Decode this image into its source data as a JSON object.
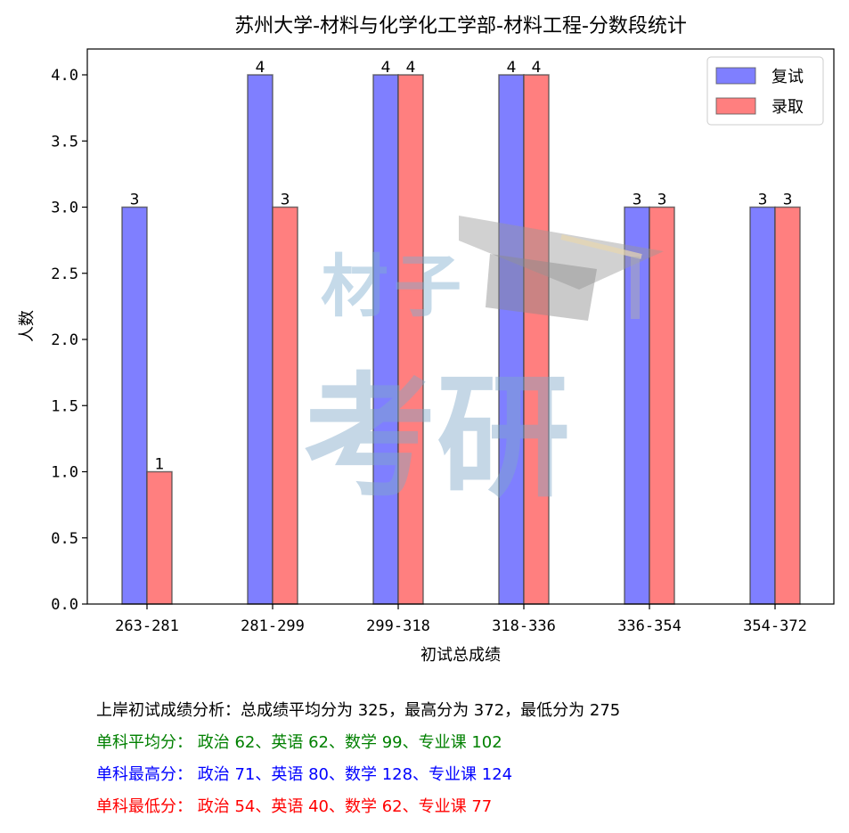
{
  "chart_data": {
    "type": "bar",
    "title": "苏州大学-材料与化学化工学部-材料工程-分数段统计",
    "xlabel": "初试总成绩",
    "ylabel": "人数",
    "categories": [
      "263-281",
      "281-299",
      "299-318",
      "318-336",
      "336-354",
      "354-372"
    ],
    "series": [
      {
        "name": "复试",
        "values": [
          3,
          4,
          4,
          4,
          3,
          3
        ],
        "color": "#7f7fff"
      },
      {
        "name": "录取",
        "values": [
          1,
          3,
          4,
          4,
          3,
          3
        ],
        "color": "#ff7f7f"
      }
    ],
    "ylim": [
      0,
      4.2
    ],
    "yticks": [
      "0.0",
      "0.5",
      "1.0",
      "1.5",
      "2.0",
      "2.5",
      "3.0",
      "3.5",
      "4.0"
    ],
    "ytick_values": [
      0,
      0.5,
      1.0,
      1.5,
      2.0,
      2.5,
      3.0,
      3.5,
      4.0
    ],
    "grid": false,
    "legend": "top-right"
  },
  "watermark": {
    "line1": "材子",
    "line2": "考研",
    "icon": "graduation-cap-icon"
  },
  "notes": [
    {
      "text": "上岸初试成绩分析：总成绩平均分为 325，最高分为 372，最低分为 275",
      "color": "#000000"
    },
    {
      "text": "单科平均分： 政治 62、英语 62、数学 99、专业课 102",
      "color": "#008000"
    },
    {
      "text": "单科最高分： 政治 71、英语 80、数学 128、专业课 124",
      "color": "#0000ff"
    },
    {
      "text": "单科最低分： 政治 54、英语 40、数学 62、专业课 77",
      "color": "#ff0000"
    }
  ]
}
